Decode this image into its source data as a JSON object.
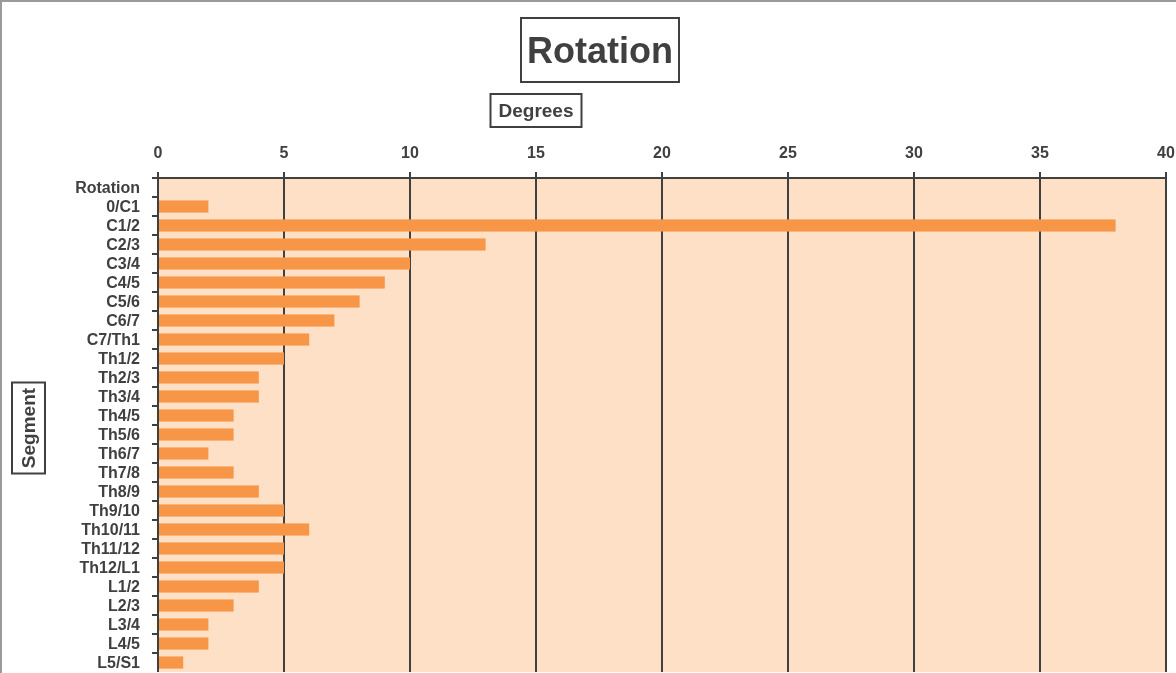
{
  "chart_data": {
    "type": "bar",
    "orientation": "horizontal",
    "title": "Rotation",
    "xlabel": "Degrees",
    "ylabel": "Segment",
    "categories": [
      "Rotation",
      "0/C1",
      "C1/2",
      "C2/3",
      "C3/4",
      "C4/5",
      "C5/6",
      "C6/7",
      "C7/Th1",
      "Th1/2",
      "Th2/3",
      "Th3/4",
      "Th4/5",
      "Th5/6",
      "Th6/7",
      "Th7/8",
      "Th8/9",
      "Th9/10",
      "Th10/11",
      "Th11/12",
      "Th12/L1",
      "L1/2",
      "L2/3",
      "L3/4",
      "L4/5",
      "L5/S1"
    ],
    "values": [
      null,
      2,
      38,
      13,
      10,
      9,
      8,
      7,
      6,
      5,
      4,
      4,
      3,
      3,
      2,
      3,
      4,
      5,
      6,
      5,
      5,
      4,
      3,
      2,
      2,
      1
    ],
    "color": "#f79646",
    "xlim": [
      0,
      40
    ],
    "xticks": [
      0,
      5,
      10,
      15,
      20,
      25,
      30,
      35,
      40
    ],
    "grid": "x"
  }
}
